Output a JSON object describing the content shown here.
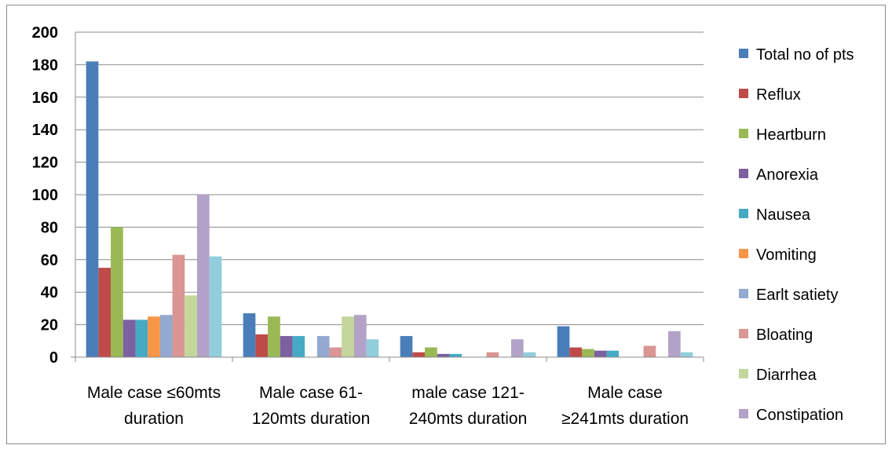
{
  "chart_data": {
    "type": "bar",
    "categories": [
      [
        "Male case ≤60mts",
        "duration"
      ],
      [
        "Male case 61-",
        "120mts duration"
      ],
      [
        "male case 121-",
        "240mts duration"
      ],
      [
        "Male case",
        "≥241mts duration"
      ]
    ],
    "ylim": [
      0,
      200
    ],
    "yticks": [
      0,
      20,
      40,
      60,
      80,
      100,
      120,
      140,
      160,
      180,
      200
    ],
    "grid": true,
    "legend_position": "right",
    "series": [
      {
        "name": "Total no of pts",
        "color": "#4a7ebb",
        "values": [
          182,
          27,
          13,
          19
        ]
      },
      {
        "name": "Reflux",
        "color": "#be4b48",
        "values": [
          55,
          14,
          3,
          6
        ]
      },
      {
        "name": "Heartburn",
        "color": "#98b954",
        "values": [
          80,
          25,
          6,
          5
        ]
      },
      {
        "name": "Anorexia",
        "color": "#7d60a0",
        "values": [
          23,
          13,
          2,
          4
        ]
      },
      {
        "name": "Nausea",
        "color": "#46aac5",
        "values": [
          23,
          13,
          2,
          4
        ]
      },
      {
        "name": "Vomiting",
        "color": "#f79646",
        "values": [
          25,
          0,
          0,
          0
        ]
      },
      {
        "name": "Earlt satiety",
        "color": "#93a9cf",
        "values": [
          26,
          13,
          0,
          0
        ]
      },
      {
        "name": "Bloating",
        "color": "#d99694",
        "values": [
          63,
          6,
          3,
          7
        ]
      },
      {
        "name": "Diarrhea",
        "color": "#c3d69b",
        "values": [
          38,
          25,
          0,
          0
        ]
      },
      {
        "name": "Constipation",
        "color": "#b3a2c7",
        "values": [
          100,
          26,
          11,
          16
        ]
      },
      {
        "name": "",
        "color": "#92cddc",
        "values": [
          62,
          11,
          3,
          3
        ]
      }
    ]
  }
}
